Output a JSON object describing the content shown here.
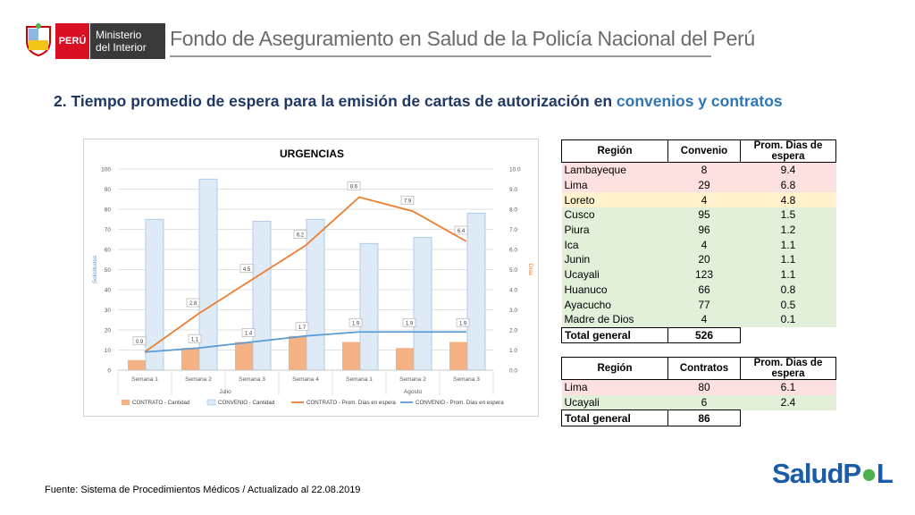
{
  "header": {
    "country": "PERÚ",
    "ministry_line1": "Ministerio",
    "ministry_line2": "del Interior",
    "title": "Fondo de Aseguramiento en Salud de la Policía Nacional del Perú"
  },
  "section": {
    "title_prefix": "2. Tiempo promedio de espera para la emisión de cartas de autorización en ",
    "title_highlight": "convenios y contratos"
  },
  "chart_data": {
    "type": "bar+line",
    "title": "URGENCIAS",
    "ylabel_left": "Solicitudes",
    "ylabel_right": "Días",
    "ylim_left": [
      0,
      100
    ],
    "ylim_right": [
      0,
      10
    ],
    "left_ticks": [
      "100",
      "90",
      "80",
      "70",
      "60",
      "50",
      "40",
      "30",
      "20",
      "10",
      "0"
    ],
    "right_ticks": [
      "10.0",
      "9.0",
      "8.0",
      "7.0",
      "6.0",
      "5.0",
      "4.0",
      "3.0",
      "2.0",
      "1.0",
      "0.0"
    ],
    "categories": [
      "Semana 1",
      "Semana 2",
      "Semana 3",
      "Semana 4",
      "Semana 1",
      "Semana 2",
      "Semana 3"
    ],
    "groups": [
      {
        "label": "Julio",
        "count": 4
      },
      {
        "label": "Agosto",
        "count": 3
      }
    ],
    "series": [
      {
        "name": "CONTRATO - Cantidad",
        "kind": "bar",
        "axis": "left",
        "color": "#f4b183",
        "values": [
          5,
          11,
          14,
          17,
          14,
          11,
          14
        ]
      },
      {
        "name": "CONVENIO - Cantidad",
        "kind": "bar",
        "axis": "left",
        "color": "#deebf7",
        "values": [
          75,
          95,
          74,
          75,
          63,
          66,
          78
        ]
      },
      {
        "name": "CONTRATO - Prom. Días en espera",
        "kind": "line",
        "axis": "right",
        "color": "#ed7d31",
        "values": [
          0.9,
          2.8,
          4.5,
          6.2,
          8.6,
          7.9,
          6.4
        ],
        "labels": [
          "0.9",
          "2.8",
          "4.5",
          "6.2",
          "8.6",
          "7.9",
          "6.4"
        ]
      },
      {
        "name": "CONVENIO - Prom. Días en espera",
        "kind": "line",
        "axis": "right",
        "color": "#5b9bd5",
        "values": [
          0.9,
          1.1,
          1.4,
          1.7,
          1.9,
          1.9,
          1.9
        ],
        "labels": [
          "",
          "1.1",
          "1.4",
          "1.7",
          "1.9",
          "1.9",
          "1.9"
        ]
      }
    ]
  },
  "table_convenios": {
    "headers": [
      "Región",
      "Convenio",
      "Prom. Dias de espera"
    ],
    "rows": [
      {
        "region": "Lambayeque",
        "count": "8",
        "days": "9.4",
        "color": "red"
      },
      {
        "region": "Lima",
        "count": "29",
        "days": "6.8",
        "color": "red"
      },
      {
        "region": "Loreto",
        "count": "4",
        "days": "4.8",
        "color": "yellow"
      },
      {
        "region": "Cusco",
        "count": "95",
        "days": "1.5",
        "color": "green"
      },
      {
        "region": "Piura",
        "count": "96",
        "days": "1.2",
        "color": "green"
      },
      {
        "region": "Ica",
        "count": "4",
        "days": "1.1",
        "color": "green"
      },
      {
        "region": "Junin",
        "count": "20",
        "days": "1.1",
        "color": "green"
      },
      {
        "region": "Ucayali",
        "count": "123",
        "days": "1.1",
        "color": "green"
      },
      {
        "region": "Huanuco",
        "count": "66",
        "days": "0.8",
        "color": "green"
      },
      {
        "region": "Ayacucho",
        "count": "77",
        "days": "0.5",
        "color": "green"
      },
      {
        "region": "Madre de Dios",
        "count": "4",
        "days": "0.1",
        "color": "green"
      }
    ],
    "total_label": "Total general",
    "total_value": "526"
  },
  "table_contratos": {
    "headers": [
      "Región",
      "Contratos",
      "Prom. Dias de espera"
    ],
    "rows": [
      {
        "region": "Lima",
        "count": "80",
        "days": "6.1",
        "color": "red"
      },
      {
        "region": "Ucayali",
        "count": "6",
        "days": "2.4",
        "color": "green"
      }
    ],
    "total_label": "Total general",
    "total_value": "86"
  },
  "footer": {
    "source": "Fuente: Sistema de Procedimientos Médicos / Actualizado al 22.08.2019",
    "logo_part1": "Salud",
    "logo_part2": "P",
    "logo_part3": "L"
  }
}
